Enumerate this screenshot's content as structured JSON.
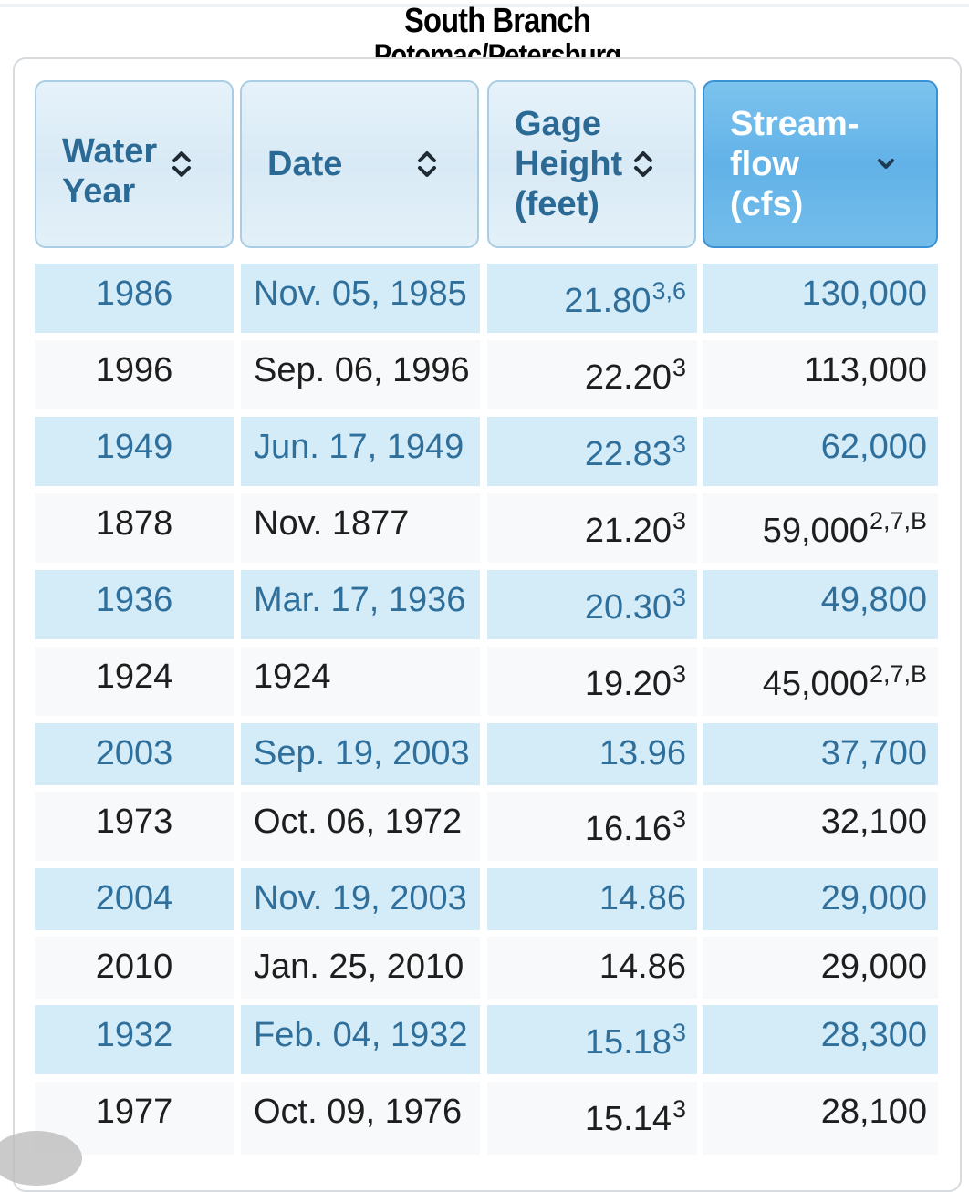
{
  "title": {
    "line1": "South Branch",
    "line2": "Potomac/Petersburg"
  },
  "columns": [
    {
      "line1": "Water",
      "line2": "Year",
      "line3": "",
      "sort": "unsorted"
    },
    {
      "line1": "Date",
      "line2": "",
      "line3": "",
      "sort": "unsorted"
    },
    {
      "line1": "Gage",
      "line2": "Height",
      "line3": "(feet)",
      "sort": "unsorted"
    },
    {
      "line1": "Stream-",
      "line2": "flow",
      "line3": "(cfs)",
      "sort": "descending"
    }
  ],
  "rows": [
    {
      "year": "1986",
      "date": "Nov. 05, 1985",
      "gage": "21.80",
      "gage_sup": "3,6",
      "flow": "130,000",
      "flow_sup": ""
    },
    {
      "year": "1996",
      "date": "Sep. 06, 1996",
      "gage": "22.20",
      "gage_sup": "3",
      "flow": "113,000",
      "flow_sup": ""
    },
    {
      "year": "1949",
      "date": "Jun. 17, 1949",
      "gage": "22.83",
      "gage_sup": "3",
      "flow": "62,000",
      "flow_sup": ""
    },
    {
      "year": "1878",
      "date": "Nov. 1877",
      "gage": "21.20",
      "gage_sup": "3",
      "flow": "59,000",
      "flow_sup": "2,7,B"
    },
    {
      "year": "1936",
      "date": "Mar. 17, 1936",
      "gage": "20.30",
      "gage_sup": "3",
      "flow": "49,800",
      "flow_sup": ""
    },
    {
      "year": "1924",
      "date": "1924",
      "gage": "19.20",
      "gage_sup": "3",
      "flow": "45,000",
      "flow_sup": "2,7,B"
    },
    {
      "year": "2003",
      "date": "Sep. 19, 2003",
      "gage": "13.96",
      "gage_sup": "",
      "flow": "37,700",
      "flow_sup": ""
    },
    {
      "year": "1973",
      "date": "Oct. 06, 1972",
      "gage": "16.16",
      "gage_sup": "3",
      "flow": "32,100",
      "flow_sup": ""
    },
    {
      "year": "2004",
      "date": "Nov. 19, 2003",
      "gage": "14.86",
      "gage_sup": "",
      "flow": "29,000",
      "flow_sup": ""
    },
    {
      "year": "2010",
      "date": "Jan. 25, 2010",
      "gage": "14.86",
      "gage_sup": "",
      "flow": "29,000",
      "flow_sup": ""
    },
    {
      "year": "1932",
      "date": "Feb. 04, 1932",
      "gage": "15.18",
      "gage_sup": "3",
      "flow": "28,300",
      "flow_sup": ""
    },
    {
      "year": "1977",
      "date": "Oct. 09, 1976",
      "gage": "15.14",
      "gage_sup": "3",
      "flow": "28,100",
      "flow_sup": ""
    }
  ],
  "colors": {
    "header_bg": "#dcecf7",
    "header_text": "#2b6a95",
    "active_header_bg": "#62b2e8",
    "alt_row_bg": "#d4ebf8",
    "alt_row_text": "#2f6f9b",
    "plain_row_bg": "#f8f9fa",
    "plain_row_text": "#1e1e1e"
  },
  "icons": {
    "unsorted": "sort-up-down-icon",
    "descending": "chevron-down-icon"
  }
}
